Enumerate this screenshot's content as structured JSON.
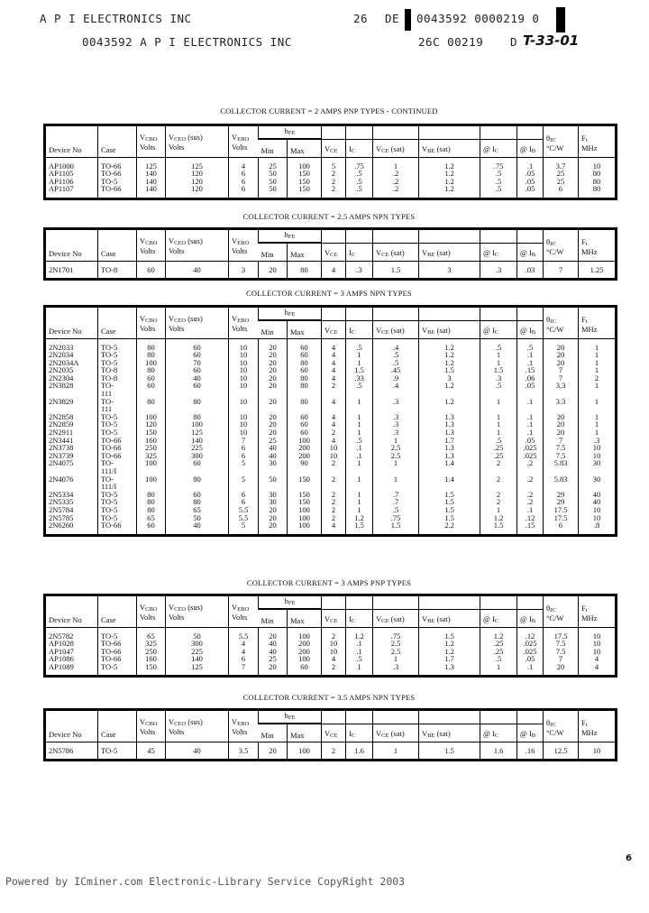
{
  "header": {
    "company_line": "A P I ELECTRONICS INC",
    "code_a": "26",
    "code_b": "DE",
    "code_c": "0043592 0000219 0",
    "line2_company": "0043592 A P I ELECTRONICS INC",
    "line2_code": "26C 00219",
    "line2_prefix": "D",
    "stamp": "T-33-01"
  },
  "columns": [
    {
      "main": "Device No",
      "sub": "",
      "tail": "",
      "line2": ""
    },
    {
      "main": "Case",
      "sub": "",
      "tail": "",
      "line2": ""
    },
    {
      "main": "V",
      "sub": "CBO",
      "tail": "",
      "line2": "Volts"
    },
    {
      "main": "V",
      "sub": "CEO",
      "tail": " (sus)",
      "line2": "Volts"
    },
    {
      "main": "V",
      "sub": "EBO",
      "tail": "",
      "line2": "Volts"
    },
    {
      "main": "h",
      "sub": "FE",
      "tail": "",
      "line2": ""
    },
    {
      "main": "Min",
      "sub": "",
      "tail": "",
      "line2": ""
    },
    {
      "main": "Max",
      "sub": "",
      "tail": "",
      "line2": ""
    },
    {
      "main": "V",
      "sub": "CE",
      "tail": "",
      "line2": ""
    },
    {
      "main": "I",
      "sub": "C",
      "tail": "",
      "line2": ""
    },
    {
      "main": "V",
      "sub": "CE",
      "tail": " (sat)",
      "line2": ""
    },
    {
      "main": "V",
      "sub": "BE",
      "tail": " (sat)",
      "line2": ""
    },
    {
      "main": "@ I",
      "sub": "C",
      "tail": "",
      "line2": ""
    },
    {
      "main": "@ I",
      "sub": "B",
      "tail": "",
      "line2": ""
    },
    {
      "main": "θ",
      "sub": "JC",
      "tail": "",
      "line2": "°C/W"
    },
    {
      "main": "F",
      "sub": "t",
      "tail": "",
      "line2": "MHz"
    }
  ],
  "sections": [
    {
      "title": "COLLECTOR CURRENT = 2 AMPS PNP TYPES - CONTINUED",
      "rows": [
        [
          "AP1000",
          "TO-66",
          "125",
          "125",
          "4",
          "25",
          "100",
          "5",
          ".75",
          "1",
          "1.2",
          ".75",
          ".1",
          "3.7",
          "10"
        ],
        [
          "AP1105",
          "TO-66",
          "140",
          "120",
          "6",
          "50",
          "150",
          "2",
          ".5",
          ".2",
          "1.2",
          ".5",
          ".05",
          "25",
          "80"
        ],
        [
          "AP1106",
          "TO-5",
          "140",
          "120",
          "6",
          "50",
          "150",
          "2",
          ".5",
          ".2",
          "1.2",
          ".5",
          ".05",
          "25",
          "80"
        ],
        [
          "AP1107",
          "TO-66",
          "140",
          "120",
          "6",
          "50",
          "150",
          "2",
          ".5",
          ".2",
          "1.2",
          ".5",
          ".05",
          "6",
          "80"
        ]
      ]
    },
    {
      "title": "COLLECTOR CURRENT = 2.5 AMPS NPN TYPES",
      "rows": [
        [
          "2N1701",
          "TO-8",
          "60",
          "40",
          "3",
          "20",
          "80",
          "4",
          ".3",
          "1.5",
          "3",
          ".3",
          ".03",
          "7",
          "1.25"
        ]
      ]
    },
    {
      "title": "COLLECTOR CURRENT = 3 AMPS NPN TYPES",
      "rows": [
        [
          "2N2033",
          "TO-5",
          "80",
          "60",
          "10",
          "20",
          "60",
          "4",
          ".5",
          ".4",
          "1.2",
          ".5",
          ".5",
          "20",
          "1"
        ],
        [
          "2N2034",
          "TO-5",
          "80",
          "60",
          "10",
          "20",
          "60",
          "4",
          "1",
          ".5",
          "1.2",
          "1",
          ".1",
          "20",
          "1"
        ],
        [
          "2N2034A",
          "TO-5",
          "100",
          "70",
          "10",
          "20",
          "80",
          "4",
          "1",
          ".5",
          "1.2",
          "1",
          ".1",
          "20",
          "1"
        ],
        [
          "2N2035",
          "TO-8",
          "80",
          "60",
          "10",
          "20",
          "60",
          "4",
          "1.5",
          ".45",
          "1.5",
          "1.5",
          ".15",
          "7",
          "1"
        ],
        [
          "2N2304",
          "TO-8",
          "60",
          "40",
          "10",
          "20",
          "80",
          "4",
          ".33",
          ".9",
          "3",
          ".3",
          ".06",
          "7",
          "2"
        ],
        [
          "2N3828",
          "TO-\n111",
          "60",
          "60",
          "10",
          "20",
          "80",
          "2",
          ".5",
          ".4",
          "1.2",
          ".5",
          ".05",
          "3.3",
          "1"
        ],
        [
          "2N3829",
          "TO-\n111",
          "80",
          "80",
          "10",
          "20",
          "80",
          "4",
          "1",
          ".3",
          "1.2",
          "1",
          ".1",
          "3.3",
          "1"
        ],
        [
          "2N2858",
          "TO-5",
          "100",
          "80",
          "10",
          "20",
          "60",
          "4",
          "1",
          ".3",
          "1.3",
          "1",
          ".1",
          "20",
          "1"
        ],
        [
          "2N2859",
          "TO-5",
          "120",
          "100",
          "10",
          "20",
          "60",
          "4",
          "1",
          ".3",
          "1.3",
          "1",
          ".1",
          "20",
          "1"
        ],
        [
          "2N2911",
          "TO-5",
          "150",
          "125",
          "10",
          "20",
          "60",
          "2",
          "1",
          ".3",
          "1.3",
          "1",
          ".1",
          "20",
          "1"
        ],
        [
          "2N3441",
          "TO-66",
          "160",
          "140",
          "7",
          "25",
          "100",
          "4",
          ".5",
          "1",
          "1.7",
          ".5",
          ".05",
          "7",
          ".3"
        ],
        [
          "2N3738",
          "TO-66",
          "250",
          "225",
          "6",
          "40",
          "200",
          "10",
          ".1",
          "2.5",
          "1.3",
          ".25",
          ".025",
          "7.5",
          "10"
        ],
        [
          "2N3739",
          "TO-66",
          "325",
          "300",
          "6",
          "40",
          "200",
          "10",
          ".1",
          "2.5",
          "1.3",
          ".25",
          ".025",
          "7.5",
          "10"
        ],
        [
          "2N4075",
          "TO-\n111/I",
          "100",
          "60",
          "5",
          "30",
          "90",
          "2",
          "1",
          "1",
          "1.4",
          "2",
          ".2",
          "5.83",
          "30"
        ],
        [
          "2N4076",
          "TO-\n111/I",
          "100",
          "80",
          "5",
          "50",
          "150",
          "2",
          "1",
          "1",
          "1.4",
          "2",
          ".2",
          "5.83",
          "30"
        ],
        [
          "2N5334",
          "TO-5",
          "80",
          "60",
          "6",
          "30",
          "150",
          "2",
          "1",
          ".7",
          "1.5",
          "2",
          ".2",
          "29",
          "40"
        ],
        [
          "2N5335",
          "TO-5",
          "80",
          "80",
          "6",
          "30",
          "150",
          "2",
          "1",
          ".7",
          "1.5",
          "2",
          ".2",
          "29",
          "40"
        ],
        [
          "2N5784",
          "TO-5",
          "80",
          "65",
          "5.5",
          "20",
          "100",
          "2",
          "1",
          ".5",
          "1.5",
          "1",
          ".1",
          "17.5",
          "10"
        ],
        [
          "2N5785",
          "TO-5",
          "65",
          "50",
          "5.5",
          "20",
          "100",
          "2",
          "1.2",
          ".75",
          "1.5",
          "1.2",
          ".12",
          "17.5",
          "10"
        ],
        [
          "2N6260",
          "TO-66",
          "60",
          "40",
          "5",
          "20",
          "100",
          "4",
          "1.5",
          "1.5",
          "2.2",
          "1.5",
          ".15",
          "6",
          ".8"
        ]
      ]
    },
    {
      "title": "COLLECTOR CURRENT = 3 AMPS PNP TYPES",
      "rows": [
        [
          "2N5782",
          "TO-5",
          "65",
          "50",
          "5.5",
          "20",
          "100",
          "2",
          "1.2",
          ".75",
          "1.5",
          "1.2",
          ".12",
          "17.5",
          "10"
        ],
        [
          "AP1028",
          "TO-66",
          "325",
          "300",
          "4",
          "40",
          "200",
          "10",
          ".1",
          "2.5",
          "1.2",
          ".25",
          ".025",
          "7.5",
          "10"
        ],
        [
          "AP1047",
          "TO-66",
          "250",
          "225",
          "4",
          "40",
          "200",
          "10",
          ".1",
          "2.5",
          "1.2",
          ".25",
          ".025",
          "7.5",
          "10"
        ],
        [
          "AP1086",
          "TO-66",
          "160",
          "140",
          "6",
          "25",
          "100",
          "4",
          ".5",
          "1",
          "1.7",
          ".5",
          ".05",
          "7",
          "4"
        ],
        [
          "AP1089",
          "TO-5",
          "150",
          "125",
          "7",
          "20",
          "60",
          "2",
          "1",
          ".3",
          "1.3",
          "1",
          ".1",
          "20",
          "4"
        ]
      ]
    },
    {
      "title": "COLLECTOR CURRENT = 3.5 AMPS NPN TYPES",
      "rows": [
        [
          "2N5786",
          "TO-5",
          "45",
          "40",
          "3.5",
          "20",
          "100",
          "2",
          "1.6",
          "1",
          "1.5",
          "1.6",
          ".16",
          "12.5",
          "10"
        ]
      ]
    }
  ],
  "page_number": "6",
  "footer": "Powered by ICminer.com Electronic-Library Service CopyRight 2003"
}
